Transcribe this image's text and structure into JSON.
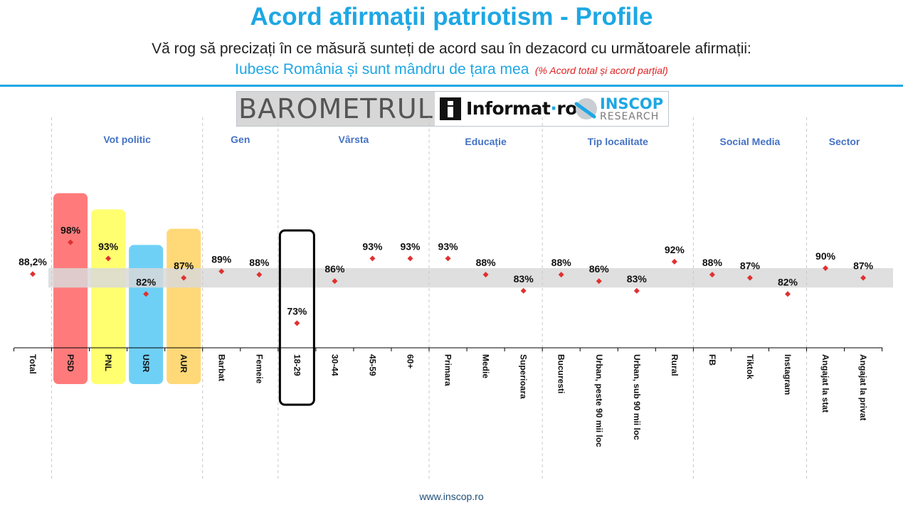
{
  "header": {
    "title": "Acord afirmații patriotism - Profile",
    "question": "Vă rog să precizați în ce măsură sunteți de acord sau în dezacord cu următoarele afirmații:",
    "statement": "Iubesc România și sunt mândru de țara mea",
    "note": "(% Acord total și acord parțial)"
  },
  "logos": {
    "barometer": "BAROMETRUL",
    "informat": "Informat",
    "informat_suffix": "ro",
    "inscop": "INSCOP",
    "research": "RESEARCH"
  },
  "footer": {
    "url": "www.inscop.ro"
  },
  "colors": {
    "accent": "#1ea7e4",
    "marker": "#e03030",
    "group_label": "#4472c4",
    "band": "#d9d9d9"
  },
  "chart_data": {
    "type": "scatter",
    "ylim": [
      0,
      100
    ],
    "series": [
      {
        "values": [
          88.2,
          98,
          93,
          82,
          87,
          89,
          88,
          73,
          86,
          93,
          93,
          93,
          88,
          83,
          88,
          86,
          83,
          92,
          88,
          87,
          82,
          90,
          87
        ],
        "labels": [
          "88,2%",
          "98%",
          "93%",
          "82%",
          "87%",
          "89%",
          "88%",
          "73%",
          "86%",
          "93%",
          "93%",
          "93%",
          "88%",
          "83%",
          "88%",
          "86%",
          "83%",
          "92%",
          "88%",
          "87%",
          "82%",
          "90%",
          "87%"
        ]
      }
    ],
    "categories": [
      "Total",
      "PSD",
      "PNL",
      "USR",
      "AUR",
      "Barbat",
      "Femeie",
      "18-29",
      "30-44",
      "45-59",
      "60+",
      "Primara",
      "Medie",
      "Superioara",
      "Bucuresti",
      "Urban, peste 90 mii loc",
      "Urban, sub 90 mii loc",
      "Rural",
      "FB",
      "Tiktok",
      "Instagram",
      "Angajat la stat",
      "Angajat la privat"
    ],
    "groups": [
      {
        "label": "Vot politic",
        "start": 1,
        "end": 4
      },
      {
        "label": "Gen",
        "start": 5,
        "end": 6
      },
      {
        "label": "Vârsta",
        "start": 7,
        "end": 10
      },
      {
        "label": "Educație",
        "start": 11,
        "end": 13
      },
      {
        "label": "Tip localitate",
        "start": 14,
        "end": 17
      },
      {
        "label": "Social Media",
        "start": 18,
        "end": 20
      },
      {
        "label": "Sector",
        "start": 21,
        "end": 22
      }
    ],
    "highlights": [
      {
        "index": 1,
        "color": "#ff7b7b"
      },
      {
        "index": 2,
        "color": "#ffff70"
      },
      {
        "index": 3,
        "color": "#6fd0f6"
      },
      {
        "index": 4,
        "color": "#ffd877"
      }
    ],
    "outlined": [
      7
    ],
    "band": [
      84,
      90
    ]
  }
}
